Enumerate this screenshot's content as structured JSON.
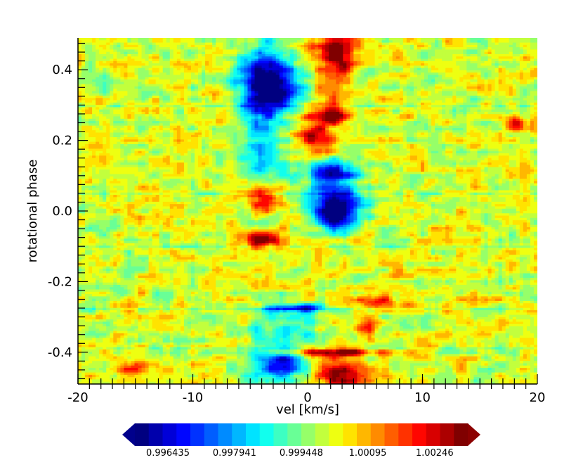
{
  "chart_data": {
    "type": "heatmap",
    "title": "",
    "xlabel": "vel [km/s]",
    "ylabel": "rotational phase",
    "xlim": [
      -20,
      20
    ],
    "ylim": [
      -0.49,
      0.49
    ],
    "x_ticks": [
      -20,
      -10,
      0,
      10,
      20
    ],
    "x_tick_labels": [
      "-20",
      "-10",
      "0",
      "10",
      "20"
    ],
    "y_ticks": [
      -0.4,
      -0.2,
      0.0,
      0.2,
      0.4
    ],
    "y_tick_labels": [
      "-0.4",
      "-0.2",
      "0.0",
      "0.2",
      "0.4"
    ],
    "colormap": "jet",
    "colorbar": {
      "range": [
        0.99569,
        1.00321
      ],
      "tick_values": [
        0.996435,
        0.997941,
        0.999448,
        1.00095,
        1.00246
      ],
      "tick_labels": [
        "0.996435",
        "0.997941",
        "0.999448",
        "1.00095",
        "1.00246"
      ],
      "extend": "both",
      "orientation": "horizontal",
      "placement": "bottom"
    },
    "background_value": 1.0001,
    "features": [
      {
        "vel": -3.0,
        "phase": 0.35,
        "value": 0.9963,
        "sigma_vel": 1.6,
        "sigma_phase": 0.05
      },
      {
        "vel": -4.0,
        "phase": 0.4,
        "value": 0.998,
        "sigma_vel": 1.5,
        "sigma_phase": 0.07
      },
      {
        "vel": 2.5,
        "phase": 0.46,
        "value": 1.003,
        "sigma_vel": 1.3,
        "sigma_phase": 0.045
      },
      {
        "vel": 2.5,
        "phase": 0.36,
        "value": 1.0016,
        "sigma_vel": 1.0,
        "sigma_phase": 0.05
      },
      {
        "vel": 2.0,
        "phase": 0.27,
        "value": 1.003,
        "sigma_vel": 1.2,
        "sigma_phase": 0.015
      },
      {
        "vel": 0.8,
        "phase": 0.21,
        "value": 1.0028,
        "sigma_vel": 1.0,
        "sigma_phase": 0.035
      },
      {
        "vel": 2.0,
        "phase": 0.11,
        "value": 0.9963,
        "sigma_vel": 1.7,
        "sigma_phase": 0.025
      },
      {
        "vel": 2.5,
        "phase": 0.03,
        "value": 0.996,
        "sigma_vel": 1.5,
        "sigma_phase": 0.03
      },
      {
        "vel": 2.5,
        "phase": -0.02,
        "value": 0.9962,
        "sigma_vel": 1.5,
        "sigma_phase": 0.025
      },
      {
        "vel": -4.0,
        "phase": 0.04,
        "value": 1.0028,
        "sigma_vel": 1.3,
        "sigma_phase": 0.03
      },
      {
        "vel": -4.0,
        "phase": -0.08,
        "value": 1.003,
        "sigma_vel": 1.6,
        "sigma_phase": 0.018
      },
      {
        "vel": -4.0,
        "phase": 0.19,
        "value": 0.9985,
        "sigma_vel": 1.4,
        "sigma_phase": 0.12
      },
      {
        "vel": -1.0,
        "phase": -0.275,
        "value": 0.997,
        "sigma_vel": 1.8,
        "sigma_phase": 0.008
      },
      {
        "vel": 6.0,
        "phase": -0.26,
        "value": 1.0022,
        "sigma_vel": 1.3,
        "sigma_phase": 0.015
      },
      {
        "vel": -2.0,
        "phase": -0.34,
        "value": 0.9985,
        "sigma_vel": 2.0,
        "sigma_phase": 0.05
      },
      {
        "vel": 2.5,
        "phase": -0.4,
        "value": 1.0032,
        "sigma_vel": 2.5,
        "sigma_phase": 0.008
      },
      {
        "vel": -2.5,
        "phase": -0.44,
        "value": 0.9962,
        "sigma_vel": 1.4,
        "sigma_phase": 0.025
      },
      {
        "vel": 3.0,
        "phase": -0.46,
        "value": 1.003,
        "sigma_vel": 1.5,
        "sigma_phase": 0.03
      },
      {
        "vel": 18.0,
        "phase": 0.25,
        "value": 1.0025,
        "sigma_vel": 0.5,
        "sigma_phase": 0.015
      },
      {
        "vel": -15.0,
        "phase": -0.45,
        "value": 1.0015,
        "sigma_vel": 1.5,
        "sigma_phase": 0.02
      },
      {
        "vel": 5.0,
        "phase": -0.33,
        "value": 1.0018,
        "sigma_vel": 0.6,
        "sigma_phase": 0.02
      }
    ],
    "phase_gaps": [
      0.3,
      0.05,
      -0.1,
      -0.28,
      -0.39
    ],
    "grid": false,
    "legend": "none"
  }
}
